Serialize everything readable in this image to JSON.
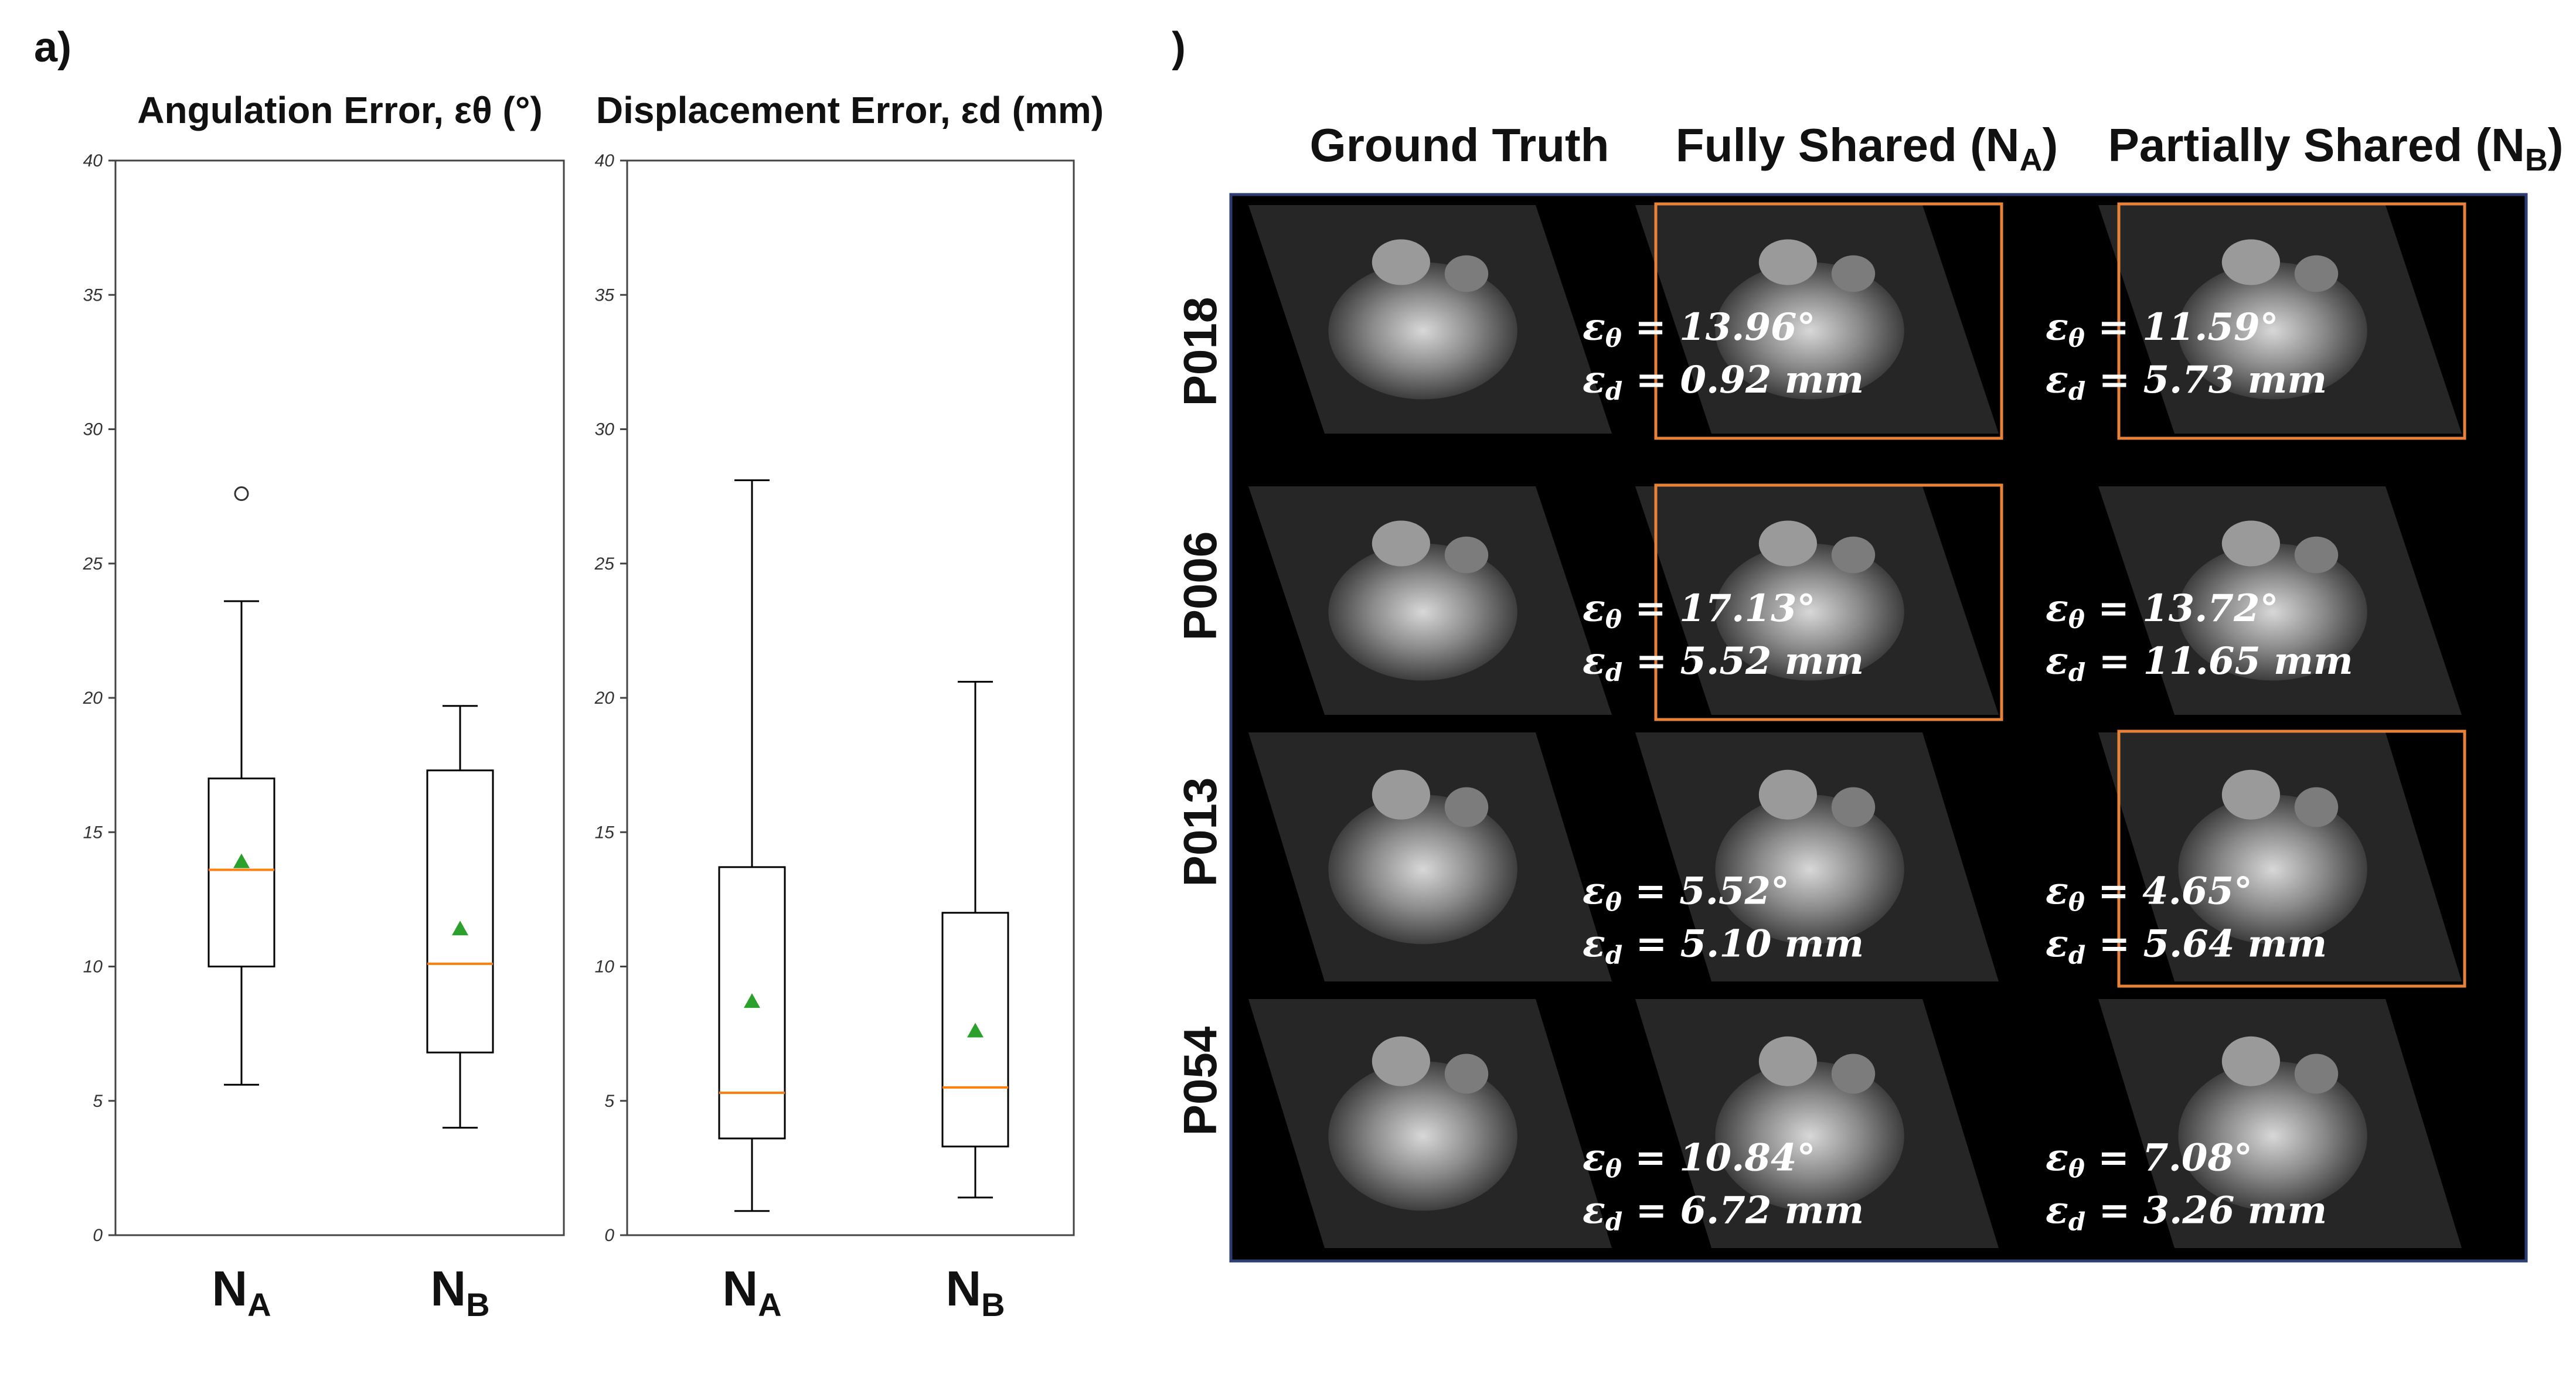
{
  "panel_a": {
    "label": "a)",
    "chart_data": [
      {
        "type": "box",
        "title": "Angulation Error, εθ (°)",
        "ylim": [
          0,
          40
        ],
        "yticks": [
          0,
          5,
          10,
          15,
          20,
          25,
          30,
          35,
          40
        ],
        "categories": [
          {
            "main": "N",
            "sub": "A"
          },
          {
            "main": "N",
            "sub": "B"
          }
        ],
        "boxes": [
          {
            "whisker_low": 5.6,
            "q1": 10.0,
            "median": 13.6,
            "q3": 17.0,
            "whisker_high": 23.6,
            "mean": 13.9,
            "outliers": [
              27.6
            ]
          },
          {
            "whisker_low": 4.0,
            "q1": 6.8,
            "median": 10.1,
            "q3": 17.3,
            "whisker_high": 19.7,
            "mean": 11.4,
            "outliers": []
          }
        ]
      },
      {
        "type": "box",
        "title": "Displacement Error, εd (mm)",
        "ylim": [
          0,
          40
        ],
        "yticks": [
          0,
          5,
          10,
          15,
          20,
          25,
          30,
          35,
          40
        ],
        "categories": [
          {
            "main": "N",
            "sub": "A"
          },
          {
            "main": "N",
            "sub": "B"
          }
        ],
        "boxes": [
          {
            "whisker_low": 0.9,
            "q1": 3.6,
            "median": 5.3,
            "q3": 13.7,
            "whisker_high": 28.1,
            "mean": 8.7,
            "outliers": []
          },
          {
            "whisker_low": 1.4,
            "q1": 3.3,
            "median": 5.5,
            "q3": 12.0,
            "whisker_high": 20.6,
            "mean": 7.6,
            "outliers": []
          }
        ]
      }
    ],
    "colors": {
      "median": "#ff7f0e",
      "mean": "#2ca02c",
      "box": "#000000"
    }
  },
  "panel_b": {
    "label": "b)",
    "columns": [
      {
        "main": "Ground Truth",
        "sub": "",
        "end": ""
      },
      {
        "main": "Fully Shared (N",
        "sub": "A",
        "end": ")"
      },
      {
        "main": "Partially Shared (N",
        "sub": "B",
        "end": ")"
      }
    ],
    "rows": [
      {
        "id": "P018",
        "highlight": [
          false,
          true,
          true
        ],
        "metrics": [
          {
            "angle": "13.96°",
            "disp": "0.92 mm"
          },
          {
            "angle": "11.59°",
            "disp": "5.73 mm"
          }
        ]
      },
      {
        "id": "P006",
        "highlight": [
          false,
          true,
          false
        ],
        "metrics": [
          {
            "angle": "17.13°",
            "disp": "5.52 mm"
          },
          {
            "angle": "13.72°",
            "disp": "11.65 mm"
          }
        ]
      },
      {
        "id": "P013",
        "highlight": [
          false,
          false,
          true
        ],
        "metrics": [
          {
            "angle": "5.52°",
            "disp": "5.10 mm"
          },
          {
            "angle": "4.65°",
            "disp": "5.64 mm"
          }
        ]
      },
      {
        "id": "P054",
        "highlight": [
          false,
          false,
          false
        ],
        "metrics": [
          {
            "angle": "10.84°",
            "disp": "6.72 mm"
          },
          {
            "angle": "7.08°",
            "disp": "3.26 mm"
          }
        ]
      }
    ],
    "colors": {
      "highlight": "#e8813a",
      "frame": "#2b3f73",
      "background": "#000000"
    }
  }
}
